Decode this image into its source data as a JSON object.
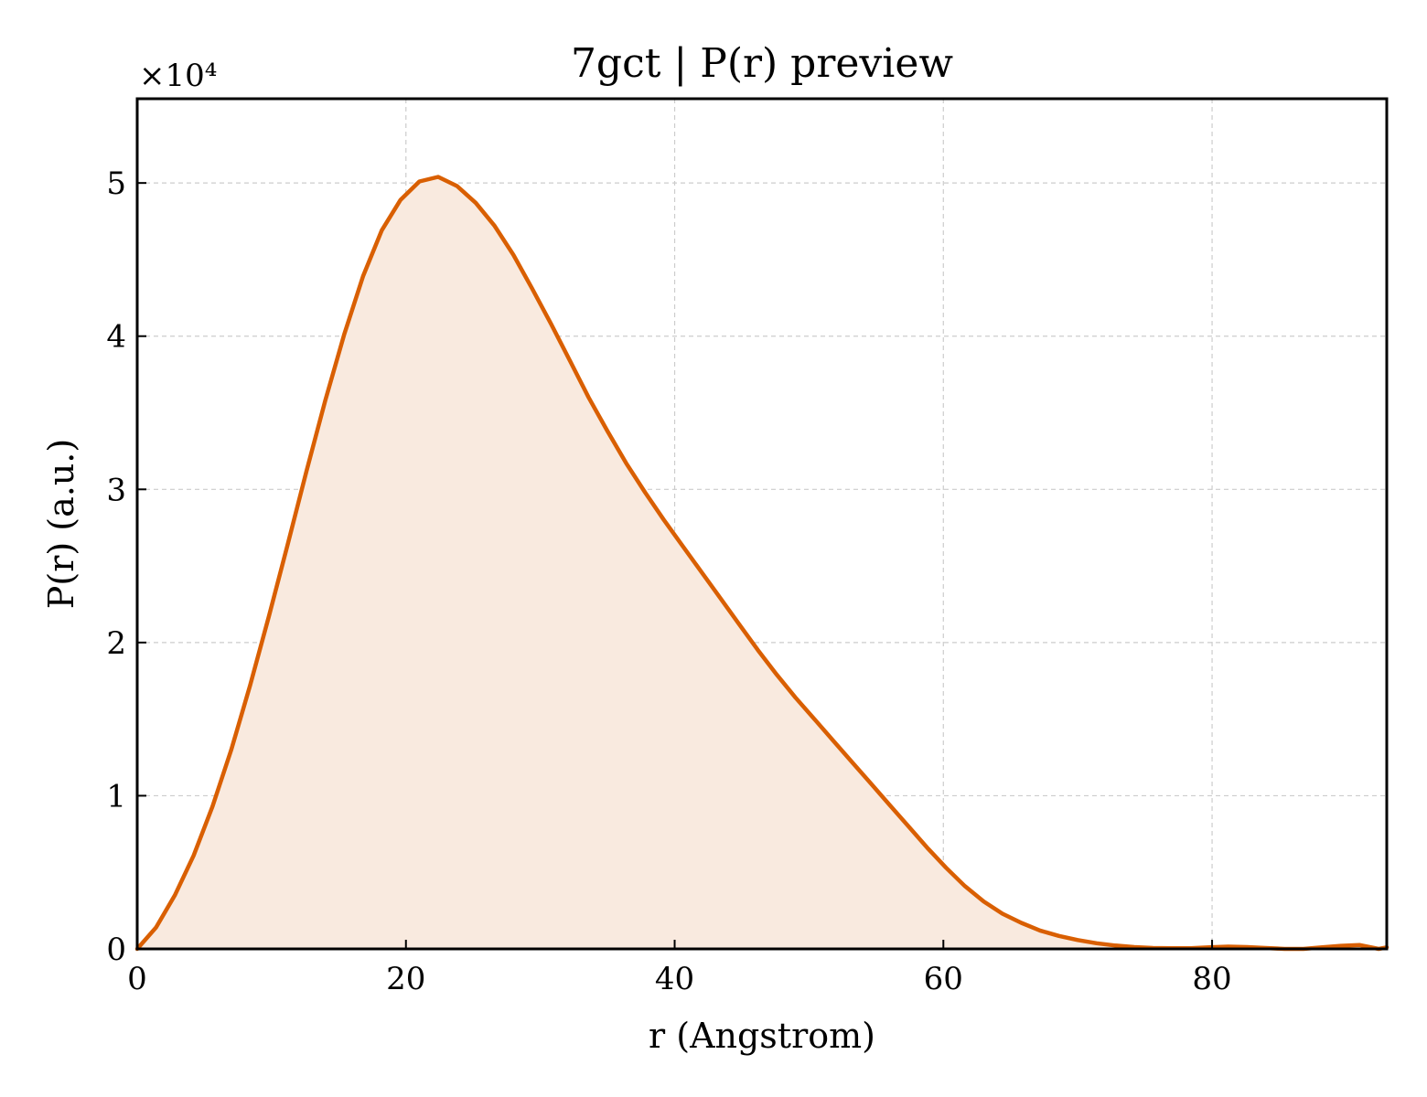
{
  "chart_data": {
    "type": "area",
    "title": "7gct | P(r) preview",
    "xlabel": "r (Angstrom)",
    "ylabel": "P(r) (a.u.)",
    "y_multiplier_label": "×10⁴",
    "y_scale_factor": 10000,
    "xlim": [
      0,
      93
    ],
    "ylim": [
      0,
      55500
    ],
    "x_ticks": [
      0,
      20,
      40,
      60,
      80
    ],
    "y_ticks": [
      0,
      10000,
      20000,
      30000,
      40000,
      50000
    ],
    "y_tick_labels": [
      "0",
      "1",
      "2",
      "3",
      "4",
      "5"
    ],
    "x_tick_labels": [
      "0",
      "20",
      "40",
      "60",
      "80"
    ],
    "grid": true,
    "line_color": "#d95f02",
    "fill_color": "#f9eadf",
    "series": [
      {
        "x": [
          0,
          1.4,
          2.8,
          4.2,
          5.6,
          7.0,
          8.4,
          9.8,
          11.2,
          12.6,
          14.0,
          15.4,
          16.8,
          18.2,
          19.6,
          21.0,
          22.4,
          23.8,
          25.2,
          26.6,
          28.0,
          29.4,
          30.8,
          32.2,
          33.6,
          35.0,
          36.4,
          37.8,
          39.2,
          40.6,
          42.0,
          43.4,
          44.8,
          46.2,
          47.6,
          49.0,
          50.4,
          51.8,
          53.2,
          54.6,
          56.0,
          57.4,
          58.8,
          60.2,
          61.6,
          63.0,
          64.4,
          65.8,
          67.2,
          68.6,
          70.0,
          71.4,
          72.8,
          74.2,
          75.6,
          77.0,
          78.4,
          79.8,
          81.2,
          82.6,
          84.0,
          85.4,
          86.8,
          88.2,
          89.6,
          91.0,
          92.4,
          93.0
        ],
        "y": [
          0,
          1400,
          3500,
          6100,
          9300,
          13000,
          17200,
          21700,
          26400,
          31200,
          35800,
          40100,
          43900,
          46900,
          48900,
          50100,
          50400,
          49800,
          48700,
          47200,
          45300,
          43100,
          40800,
          38400,
          36000,
          33800,
          31700,
          29800,
          28000,
          26300,
          24600,
          22900,
          21200,
          19500,
          17900,
          16400,
          15000,
          13600,
          12200,
          10800,
          9400,
          8000,
          6600,
          5300,
          4100,
          3100,
          2300,
          1700,
          1200,
          850,
          580,
          370,
          220,
          120,
          60,
          40,
          50,
          100,
          150,
          120,
          60,
          0,
          0,
          100,
          200,
          250,
          0,
          100
        ]
      }
    ]
  }
}
